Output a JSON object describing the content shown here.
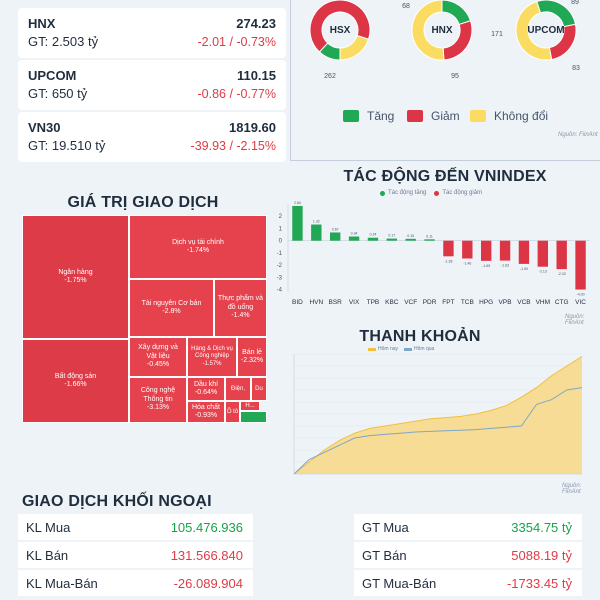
{
  "indices": [
    {
      "name": "HNX",
      "value": "274.23",
      "gt": "GT: 2.503 tỷ",
      "change": "-2.01 / -0.73%"
    },
    {
      "name": "UPCOM",
      "value": "110.15",
      "gt": "GT: 650 tỷ",
      "change": "-0.86 / -0.77%"
    },
    {
      "name": "VN30",
      "value": "1819.60",
      "gt": "GT: 19.510 tỷ",
      "change": "-39.93 / -2.15%"
    }
  ],
  "donuts": [
    {
      "label": "HSX",
      "up": null,
      "down": 262,
      "flat": null,
      "up_label": "",
      "down_label": "262",
      "flat_label": ""
    },
    {
      "label": "HNX",
      "up": 68,
      "down": 95,
      "flat": 171,
      "up_label": "68",
      "down_label": "95",
      "flat_label": "171"
    },
    {
      "label": "UPCOM",
      "up": 89,
      "down": 83,
      "flat": null,
      "up_label": "89",
      "down_label": "83",
      "flat_label": ""
    }
  ],
  "donut_legend": {
    "up": "Tăng",
    "down": "Giảm",
    "flat": "Không đổi"
  },
  "source_label": "Nguồn: FiinAnt",
  "colors": {
    "up": "#21a854",
    "down": "#dc3545",
    "flat": "#fbdc63",
    "treemap": "#e5424d",
    "area": "#f7d98a",
    "line": "#f2bf3e",
    "line2": "#7fa7c8"
  },
  "titles": {
    "impact": "TÁC ĐỘNG ĐẾN VNINDEX",
    "value": "GIÁ TRỊ GIAO DỊCH",
    "liquidity": "THANH KHOẢN",
    "foreign": "GIAO DỊCH KHỐI NGOẠI"
  },
  "impact_legend": {
    "up": "Tác động tăng",
    "down": "Tác động giảm"
  },
  "liquidity_legend": {
    "a": "Hôm nay",
    "b": "Hôm qua"
  },
  "treemap": [
    {
      "name": "Ngân hàng",
      "change": "-1.75%"
    },
    {
      "name": "Dịch vụ tài chính",
      "change": "-1.74%"
    },
    {
      "name": "Tài nguyên Cơ bản",
      "change": "-2.8%"
    },
    {
      "name": "Thực phẩm và đồ uống",
      "change": "-1.4%"
    },
    {
      "name": "Bất động sản",
      "change": "-1.66%"
    },
    {
      "name": "Xây dựng và Vật liệu",
      "change": "-0.45%"
    },
    {
      "name": "Hàng & Dịch vụ Công nghiệp",
      "change": "-1.57%"
    },
    {
      "name": "Bán lẻ",
      "change": "-2.32%"
    },
    {
      "name": "Công nghệ Thông tin",
      "change": "-3.13%"
    },
    {
      "name": "Dầu khí",
      "change": "-0.64%"
    },
    {
      "name": "Hóa chất",
      "change": "-0.93%"
    },
    {
      "name": "Điện,",
      "change": ""
    },
    {
      "name": "Du",
      "change": ""
    },
    {
      "name": "Ô tô",
      "change": ""
    },
    {
      "name": "H...",
      "change": ""
    }
  ],
  "chart_data": [
    {
      "type": "bar",
      "title": "TÁC ĐỘNG ĐẾN VNINDEX",
      "categories": [
        "BID",
        "HVN",
        "BSR",
        "VIX",
        "TPB",
        "KBC",
        "VCF",
        "PDR",
        "FPT",
        "TCB",
        "HPG",
        "VPB",
        "VCB",
        "VHM",
        "CTG",
        "VIC"
      ],
      "values": [
        2.84,
        1.32,
        0.67,
        0.34,
        0.24,
        0.17,
        0.15,
        0.11,
        -1.28,
        -1.46,
        -1.65,
        -1.63,
        -1.9,
        -2.13,
        -2.33,
        -4
      ],
      "value_labels": [
        "2.84",
        "1.32",
        "0.67",
        "0.34",
        "0.24",
        "0.17",
        "0.15",
        "0.11",
        "-1.28",
        "-1.46",
        "-1.65",
        "-1.63",
        "-1.90",
        "-2.13",
        "-2.33",
        "-4.00"
      ],
      "yticks": [
        2,
        1,
        0,
        -1,
        -2,
        -3,
        -4
      ],
      "ylim": [
        -4.2,
        3
      ],
      "grid": false
    },
    {
      "type": "area",
      "title": "THANH KHOẢN",
      "series": [
        {
          "name": "Hôm nay",
          "values": [
            0,
            10,
            20,
            28,
            34,
            38,
            40,
            42,
            44,
            46,
            47,
            48,
            50,
            53,
            57,
            64,
            72,
            82,
            90,
            98
          ]
        },
        {
          "name": "Hôm qua",
          "values": [
            0,
            12,
            18,
            24,
            30,
            32,
            33,
            34,
            35,
            35.5,
            36,
            36.5,
            37,
            38,
            39,
            40,
            58,
            62,
            70,
            72
          ]
        }
      ],
      "ylim": [
        0,
        100
      ]
    }
  ],
  "foreign": {
    "left": [
      {
        "label": "KL Mua",
        "value": "105.476.936",
        "sign": "pos"
      },
      {
        "label": "KL Bán",
        "value": "131.566.840",
        "sign": "neg"
      },
      {
        "label": "KL Mua-Bán",
        "value": "-26.089.904",
        "sign": "neg"
      }
    ],
    "right": [
      {
        "label": "GT Mua",
        "value": "3354.75 tỷ",
        "sign": "pos"
      },
      {
        "label": "GT Bán",
        "value": "5088.19 tỷ",
        "sign": "neg"
      },
      {
        "label": "GT Mua-Bán",
        "value": "-1733.45 tỷ",
        "sign": "neg"
      }
    ]
  }
}
